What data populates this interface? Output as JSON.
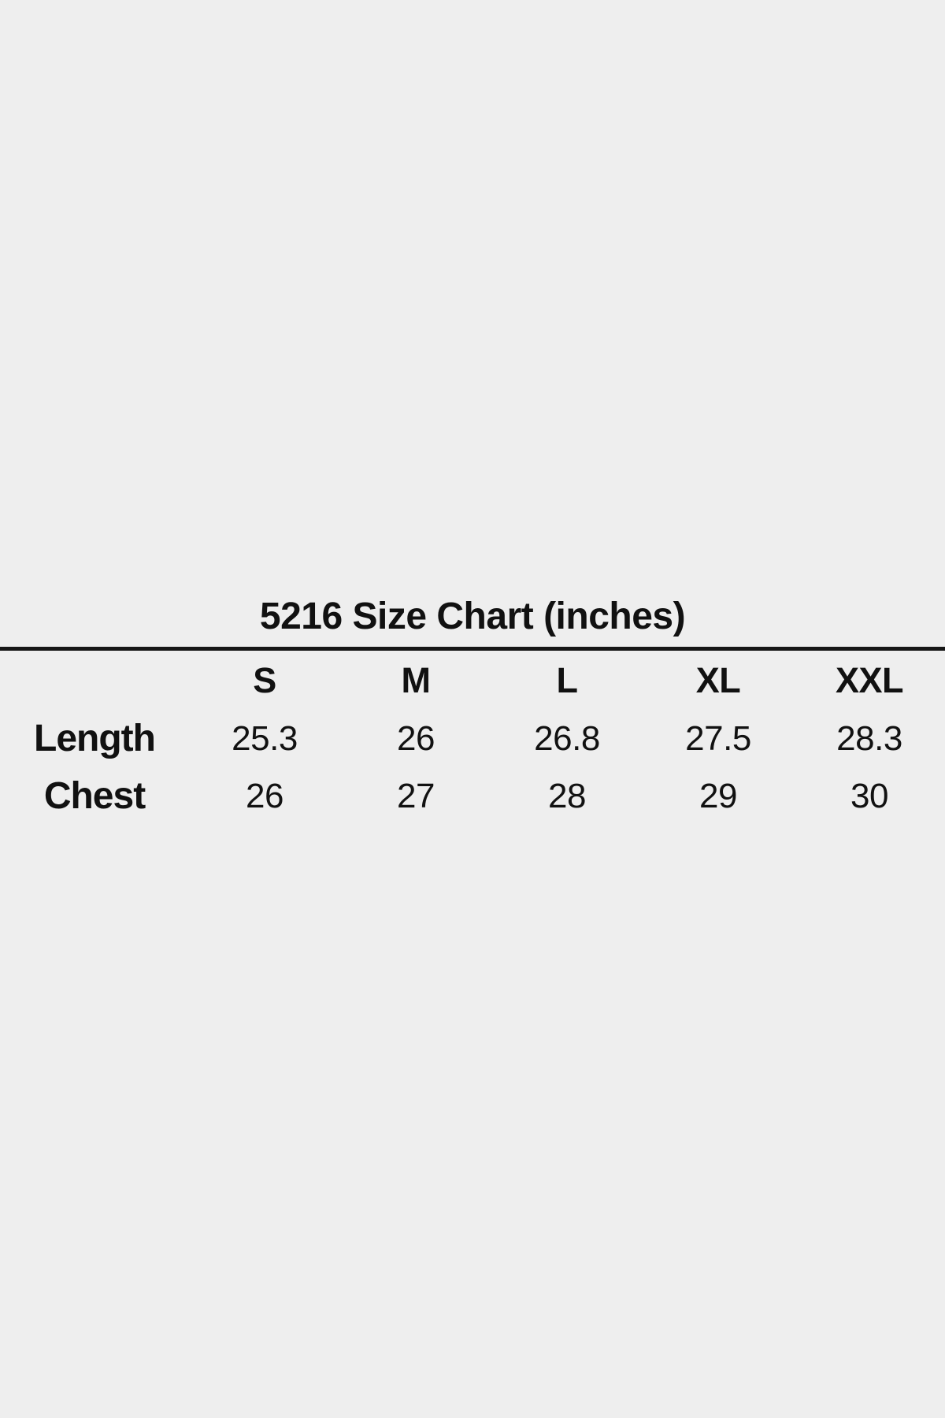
{
  "page": {
    "background_color": "#eeeeee",
    "text_color": "#111111",
    "rule_color": "#161616"
  },
  "size_chart": {
    "title": "5216 Size Chart (inches)",
    "columns": [
      "S",
      "M",
      "L",
      "XL",
      "XXL"
    ],
    "rows": [
      {
        "label": "Length",
        "values": [
          "25.3",
          "26",
          "26.8",
          "27.5",
          "28.3"
        ]
      },
      {
        "label": "Chest",
        "values": [
          "26",
          "27",
          "28",
          "29",
          "30"
        ]
      }
    ]
  },
  "chart_data": {
    "type": "table",
    "title": "5216 Size Chart (inches)",
    "unit": "inches",
    "categories": [
      "S",
      "M",
      "L",
      "XL",
      "XXL"
    ],
    "series": [
      {
        "name": "Length",
        "values": [
          25.3,
          26,
          26.8,
          27.5,
          28.3
        ]
      },
      {
        "name": "Chest",
        "values": [
          26,
          27,
          28,
          29,
          30
        ]
      }
    ],
    "layout": {
      "title_position": "top-center",
      "rule_under_title": true,
      "grid": "off",
      "row_labels_bold": true
    }
  }
}
